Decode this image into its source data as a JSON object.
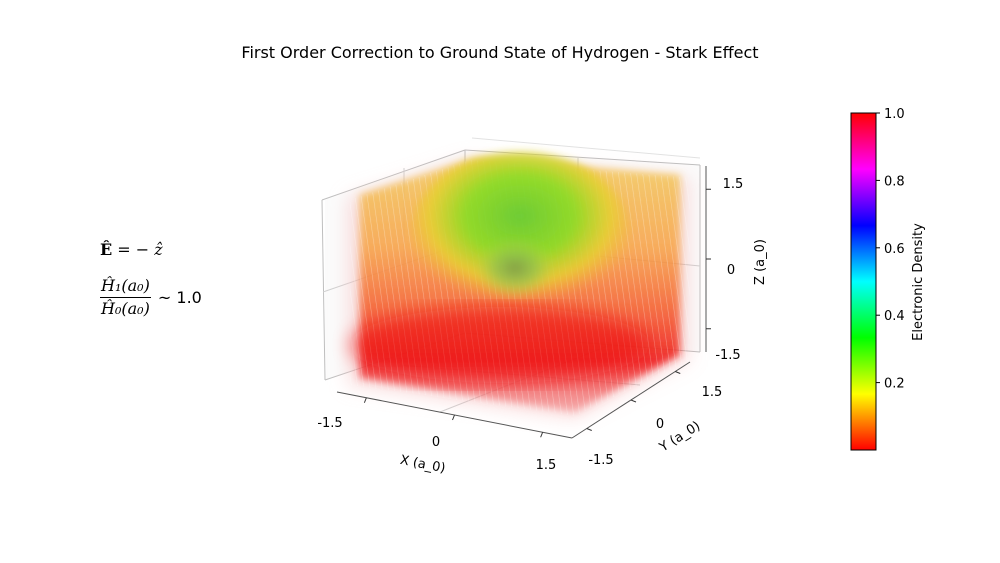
{
  "title": "First Order Correction to Ground State of Hydrogen - Stark Effect",
  "annotations": {
    "field_lhs": "Ê",
    "field_eq": "= −",
    "field_rhs": "ẑ",
    "ratio_num": "Ĥ₁(a₀)",
    "ratio_den": "Ĥ₀(a₀)",
    "ratio_rhs": "~ 1.0"
  },
  "chart_data": {
    "type": "3d-volume-scatter",
    "title": "First Order Correction to Ground State of Hydrogen - Stark Effect",
    "axes": {
      "x": {
        "label": "X (a_0)",
        "ticks": [
          -1.5,
          0,
          1.5
        ],
        "tick_labels": [
          "-1.5",
          "0",
          "1.5"
        ],
        "range": [
          -2,
          2
        ]
      },
      "y": {
        "label": "Y (a_0)",
        "ticks": [
          -1.5,
          0,
          1.5
        ],
        "tick_labels": [
          "-1.5",
          "0",
          "1.5"
        ],
        "range": [
          -2,
          2
        ]
      },
      "z": {
        "label": "Z (a_0)",
        "ticks": [
          -1.5,
          0,
          1.5
        ],
        "tick_labels": [
          "-1.5",
          "0",
          "1.5"
        ],
        "range": [
          -2,
          2
        ]
      }
    },
    "grid": true,
    "colorbar": {
      "label": "Electronic Density",
      "ticks": [
        0.2,
        0.4,
        0.6,
        0.8,
        1.0
      ],
      "tick_labels": [
        "0.2",
        "0.4",
        "0.6",
        "0.8",
        "1.0"
      ],
      "range": [
        0,
        1
      ],
      "colormap": "hsv",
      "stops": [
        "#ff0000",
        "#ffff00",
        "#00ff00",
        "#00ffff",
        "#0000ff",
        "#ff00ff",
        "#ff0000"
      ]
    },
    "density_description_values": {
      "low_z_density": 0.02,
      "mid_z_density": 0.12,
      "high_z_center_density": 0.32
    }
  }
}
